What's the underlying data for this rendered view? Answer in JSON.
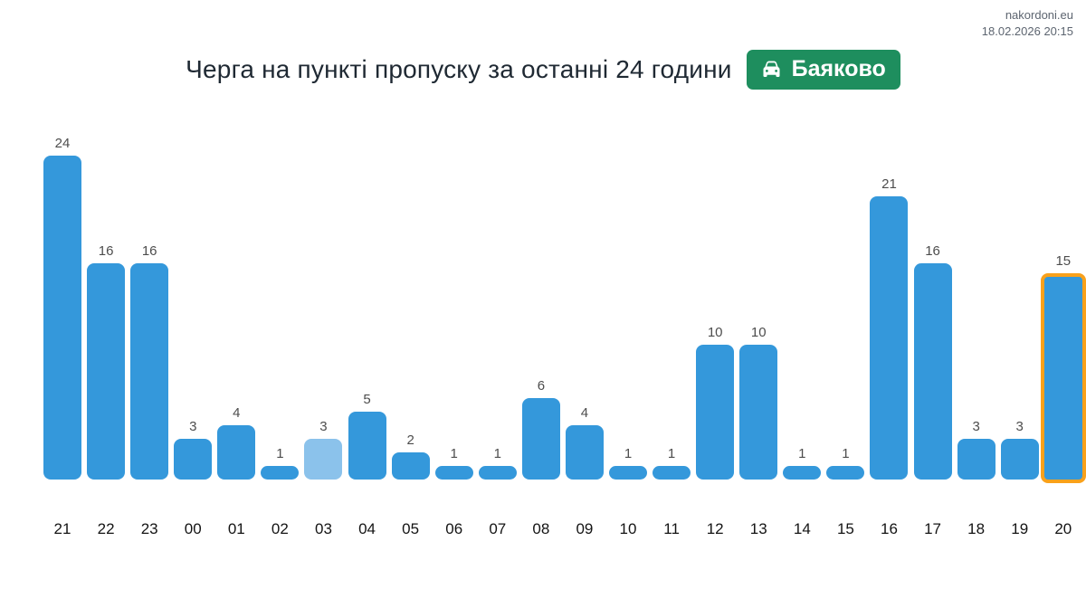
{
  "header": {
    "site": "nakordoni.eu",
    "timestamp": "18.02.2026 20:15",
    "title": "Черга на пункті пропуску за останні 24 години",
    "badge": {
      "label": "Баяково",
      "color": "#1e8e5e",
      "icon": "car-icon"
    }
  },
  "chart_data": {
    "type": "bar",
    "title": "Черга на пункті пропуску за останні 24 години",
    "categories": [
      "21",
      "22",
      "23",
      "00",
      "01",
      "02",
      "03",
      "04",
      "05",
      "06",
      "07",
      "08",
      "09",
      "10",
      "11",
      "12",
      "13",
      "14",
      "15",
      "16",
      "17",
      "18",
      "19",
      "20"
    ],
    "values": [
      24,
      16,
      16,
      3,
      4,
      1,
      3,
      5,
      2,
      1,
      1,
      6,
      4,
      1,
      1,
      10,
      10,
      1,
      1,
      21,
      16,
      3,
      3,
      15
    ],
    "xlabel": "",
    "ylabel": "",
    "ylim": [
      0,
      26
    ],
    "grid": false,
    "legend": "none",
    "value_labels": true,
    "bar_color": "#3498db",
    "muted_bar_index": 6,
    "muted_bar_color": "#8bc2eb",
    "highlighted_bar_index": 23,
    "highlight_border_color": "#f9a11b",
    "value_label_color": "#4d4d4d",
    "axis_label_color": "#141414"
  }
}
